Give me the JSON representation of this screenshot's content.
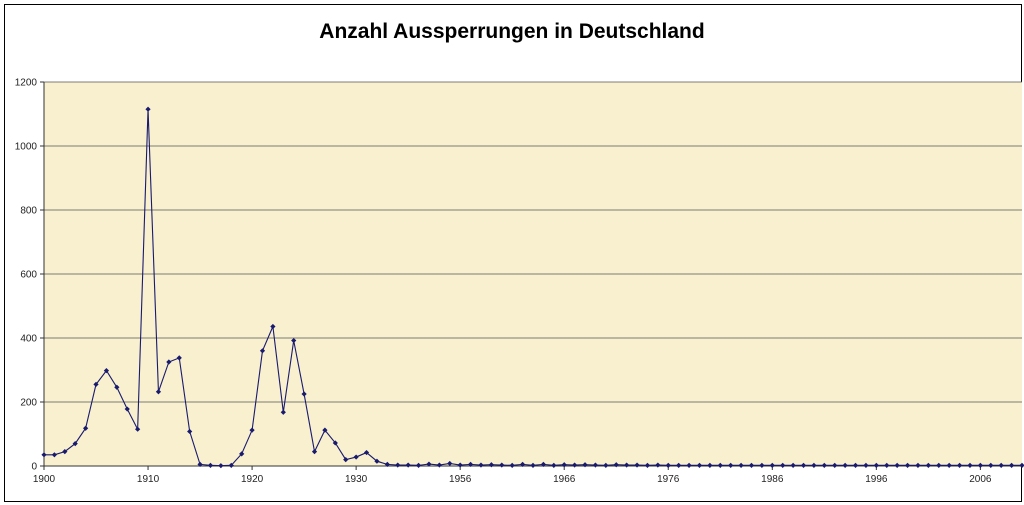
{
  "chart_data": {
    "type": "line",
    "title": "Anzahl Aussperrungen in Deutschland",
    "xlabel": "",
    "ylabel": "",
    "ylim": [
      0,
      1200
    ],
    "y_ticks": [
      0,
      200,
      400,
      600,
      800,
      1000,
      1200
    ],
    "x_tick_labels": [
      "1900",
      "1910",
      "1920",
      "1930",
      "1956",
      "1966",
      "1976",
      "1986",
      "1996",
      "2006"
    ],
    "grid": true,
    "legend": "none",
    "colors": {
      "line": "#1a1a6e",
      "marker": "#1a1a6e",
      "plot_background": "#f8f0cf",
      "gridline": "#555555"
    },
    "categories": [
      "1900",
      "1901",
      "1902",
      "1903",
      "1904",
      "1905",
      "1906",
      "1907",
      "1908",
      "1909",
      "1910",
      "1911",
      "1912",
      "1913",
      "1914",
      "1915",
      "1916",
      "1917",
      "1918",
      "1919",
      "1920",
      "1921",
      "1922",
      "1923",
      "1924",
      "1925",
      "1926",
      "1927",
      "1928",
      "1929",
      "1930",
      "1931",
      "1932",
      "1933",
      "1950",
      "1951",
      "1952",
      "1953",
      "1954",
      "1955",
      "1956",
      "1957",
      "1958",
      "1959",
      "1960",
      "1961",
      "1962",
      "1963",
      "1964",
      "1965",
      "1966",
      "1967",
      "1968",
      "1969",
      "1970",
      "1971",
      "1972",
      "1973",
      "1974",
      "1975",
      "1976",
      "1977",
      "1978",
      "1979",
      "1980",
      "1981",
      "1982",
      "1983",
      "1984",
      "1985",
      "1986",
      "1987",
      "1988",
      "1989",
      "1990",
      "1991",
      "1992",
      "1993",
      "1994",
      "1995",
      "1996",
      "1997",
      "1998",
      "1999",
      "2000",
      "2001",
      "2002",
      "2003",
      "2004",
      "2005",
      "2006",
      "2007",
      "2008",
      "2009",
      "2010"
    ],
    "values": [
      35,
      35,
      45,
      70,
      118,
      255,
      298,
      246,
      178,
      115,
      1115,
      232,
      325,
      338,
      108,
      5,
      2,
      1,
      2,
      38,
      112,
      360,
      436,
      168,
      392,
      225,
      45,
      112,
      72,
      20,
      28,
      42,
      15,
      5,
      3,
      3,
      2,
      6,
      3,
      8,
      3,
      5,
      3,
      4,
      3,
      2,
      5,
      2,
      5,
      2,
      4,
      3,
      4,
      3,
      2,
      4,
      3,
      3,
      2,
      3,
      2,
      2,
      2,
      2,
      2,
      2,
      2,
      2,
      2,
      2,
      2,
      2,
      2,
      2,
      2,
      2,
      2,
      2,
      2,
      2,
      2,
      2,
      2,
      2,
      2,
      2,
      2,
      2,
      2,
      2,
      2,
      2,
      2,
      2,
      2
    ]
  }
}
